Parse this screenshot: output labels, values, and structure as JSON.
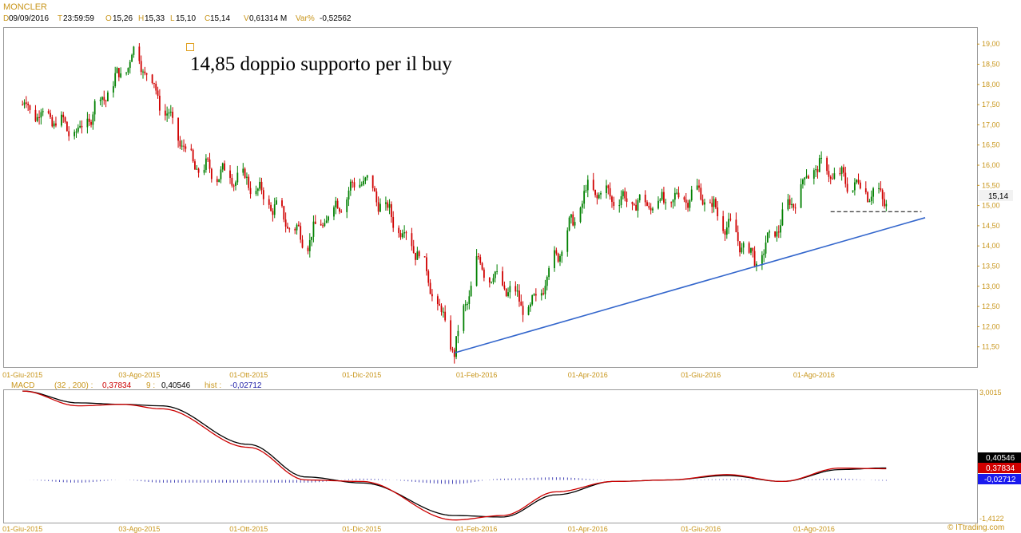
{
  "header": {
    "symbol": "MONCLER",
    "d_prefix": "D",
    "date": "09/09/2016",
    "t_prefix": "T",
    "time": "23:59:59",
    "o_prefix": "O",
    "open": "15,26",
    "h_prefix": "H",
    "high": "15,33",
    "l_prefix": "L",
    "low": "15,10",
    "c_prefix": "C",
    "close": "15,14",
    "v_prefix": "V",
    "volume": "0,61314 M",
    "var_prefix": "Var%",
    "var": "-0,52562"
  },
  "annotation": "14,85 doppio supporto per il buy",
  "price_label": "15,14",
  "macd_header": {
    "name": "MACD",
    "params": "(32 , 200) :",
    "macd_value": "0,37834",
    "signal_label": "9 :",
    "signal_value": "0,40546",
    "hist_label": "hist :",
    "hist_value": "-0,02712"
  },
  "macd_labels": {
    "signal": "0,40546",
    "macd": "0,37834",
    "hist": "-0,02712"
  },
  "macd_axis": {
    "top": "3,0015",
    "bottom": "-1,4122"
  },
  "footer": {
    "brand": "© ITtrading.com"
  },
  "colors": {
    "up": "#008000",
    "down": "#d00000",
    "trend": "#3366cc",
    "macd": "#cc0000",
    "signal": "#000000",
    "hist": "#1a1aa6",
    "axis": "#c8951a"
  },
  "chart_data": [
    {
      "type": "candlestick",
      "title": "MONCLER",
      "x_tick_labels": [
        "01-Giu-2015",
        "03-Ago-2015",
        "01-Ott-2015",
        "01-Dic-2015",
        "01-Feb-2016",
        "01-Apr-2016",
        "01-Giu-2016",
        "01-Ago-2016"
      ],
      "y_tick_labels": [
        "11,50",
        "12,00",
        "12,50",
        "13,00",
        "13,50",
        "14,00",
        "14,50",
        "15,00",
        "15,50",
        "16,00",
        "16,50",
        "17,00",
        "17,50",
        "18,00",
        "18,50",
        "19,00"
      ],
      "ylim": [
        11.0,
        19.4
      ],
      "x_dates": [
        "2015-06-01",
        "2015-07-01",
        "2015-08-01",
        "2015-09-01",
        "2015-10-01",
        "2015-11-01",
        "2015-12-01",
        "2016-01-01",
        "2016-01-20",
        "2016-02-01",
        "2016-03-01",
        "2016-04-01",
        "2016-05-01",
        "2016-06-01",
        "2016-07-01",
        "2016-08-01",
        "2016-09-09"
      ],
      "close_path": [
        17.5,
        16.8,
        18.8,
        16.0,
        15.6,
        14.1,
        15.7,
        13.8,
        11.4,
        13.6,
        12.4,
        15.4,
        15.0,
        15.3,
        13.6,
        16.0,
        15.14
      ],
      "support_line": {
        "from": [
          "2016-01-20",
          11.35
        ],
        "to": [
          "2016-09-30",
          14.7
        ]
      },
      "horizontal_support": {
        "value": 14.85,
        "from": "2016-08-10",
        "to": "2016-09-28"
      }
    },
    {
      "type": "line",
      "title": "MACD",
      "ylim": [
        -1.4122,
        3.0015
      ],
      "x_dates": [
        "2015-06-01",
        "2015-07-01",
        "2015-07-25",
        "2015-08-15",
        "2015-10-01",
        "2015-11-01",
        "2015-12-01",
        "2016-01-20",
        "2016-02-15",
        "2016-03-15",
        "2016-04-15",
        "2016-05-15",
        "2016-06-15",
        "2016-07-15",
        "2016-08-15",
        "2016-09-09"
      ],
      "series": [
        {
          "name": "MACD",
          "values": [
            3.0,
            2.5,
            2.55,
            2.4,
            1.1,
            0.0,
            -0.05,
            -1.35,
            -1.2,
            -0.4,
            -0.05,
            0.0,
            0.18,
            -0.05,
            0.4,
            0.37834
          ]
        },
        {
          "name": "Signal",
          "values": [
            3.0,
            2.6,
            2.55,
            2.5,
            1.2,
            0.1,
            -0.1,
            -1.2,
            -1.25,
            -0.5,
            -0.05,
            0.0,
            0.15,
            -0.05,
            0.35,
            0.40546
          ]
        }
      ]
    }
  ]
}
